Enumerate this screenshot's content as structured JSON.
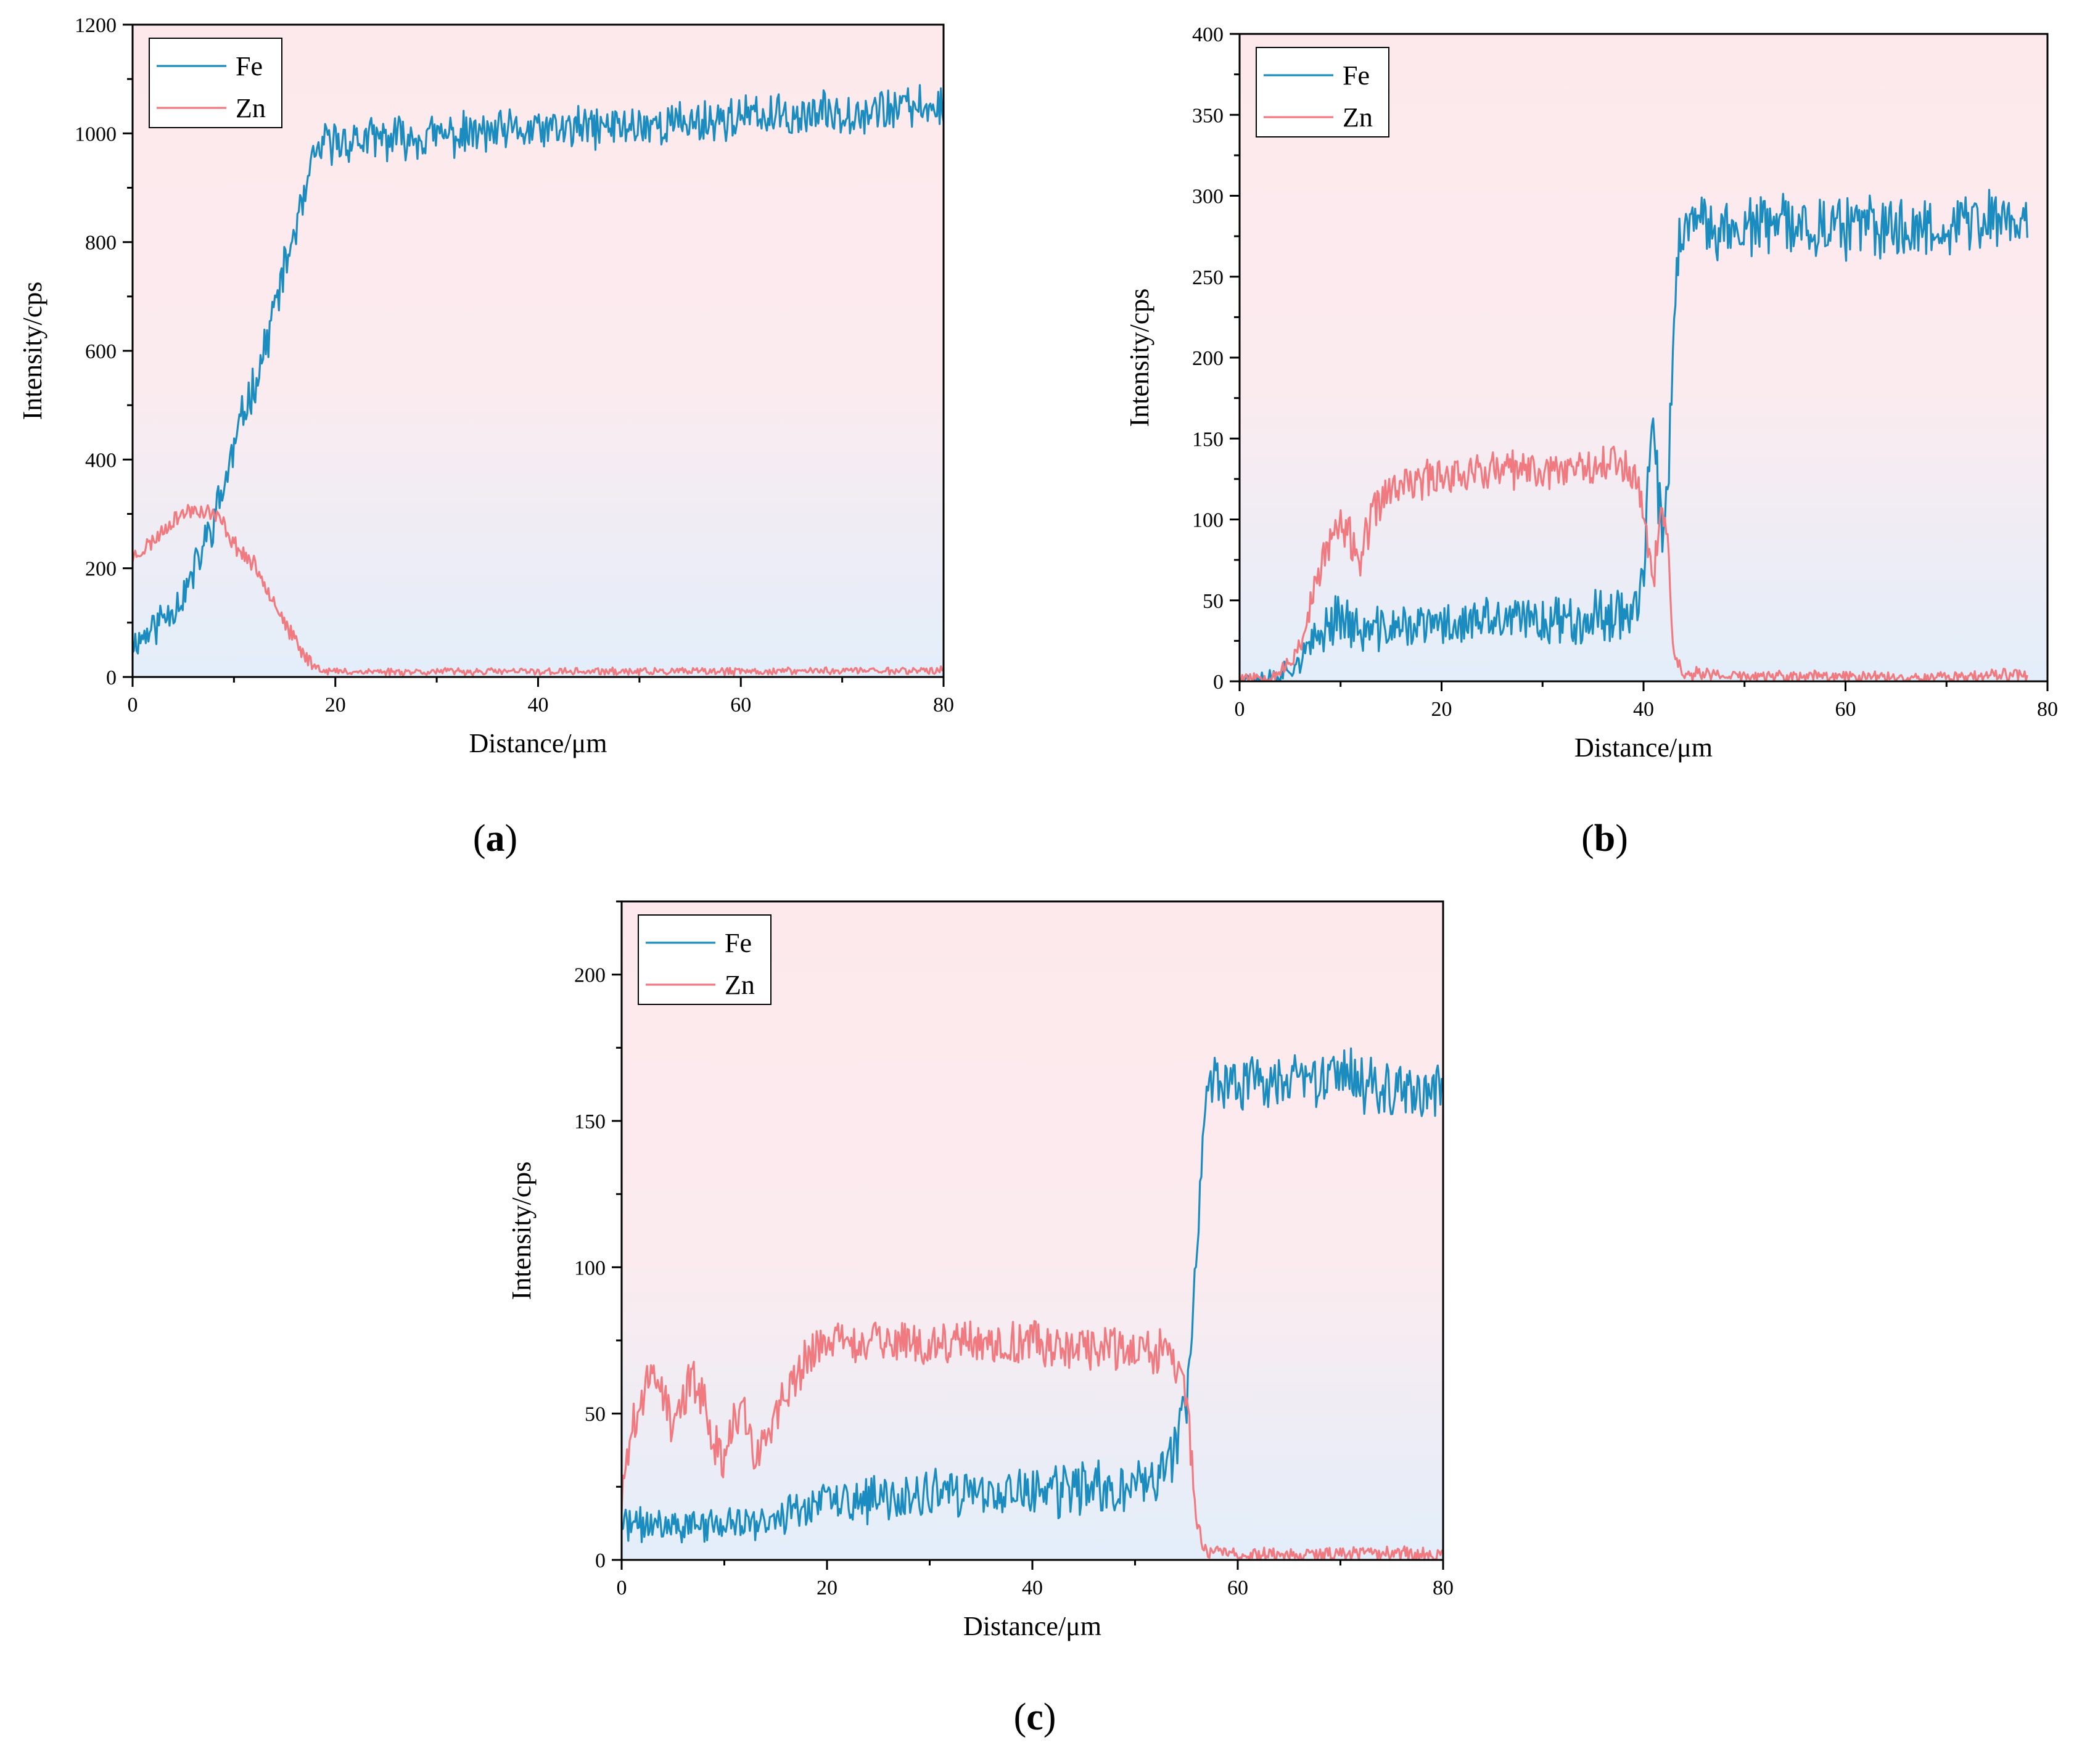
{
  "colors": {
    "fe": "#1a8cc0",
    "zn": "#f07a80",
    "bg_top": "#fde9ec",
    "bg_bottom": "#e3eefa"
  },
  "chart_data": [
    {
      "panel": "(a)",
      "panel_letter": "a",
      "type": "line",
      "xlabel": "Distance/μm",
      "ylabel": "Intensity/cps",
      "xlim": [
        0,
        80
      ],
      "ylim": [
        0,
        1200
      ],
      "xticks": [
        0,
        20,
        40,
        60,
        80
      ],
      "yticks": [
        0,
        200,
        400,
        600,
        800,
        1000,
        1200
      ],
      "legend_position": "top-left",
      "series": [
        {
          "name": "Fe",
          "color": "#1a8cc0",
          "x": [
            0,
            2,
            4,
            5,
            6,
            7,
            8,
            9,
            10,
            11,
            12,
            13,
            14,
            15,
            16,
            17,
            18,
            19,
            20,
            25,
            30,
            35,
            40,
            45,
            50,
            55,
            60,
            65,
            70,
            75,
            80
          ],
          "y": [
            60,
            90,
            130,
            150,
            190,
            240,
            290,
            350,
            420,
            490,
            540,
            600,
            680,
            750,
            820,
            880,
            960,
            980,
            985,
            990,
            995,
            1000,
            1005,
            1010,
            1015,
            1020,
            1030,
            1030,
            1040,
            1045,
            1050
          ],
          "noise": 35,
          "seed": 11
        },
        {
          "name": "Zn",
          "color": "#f07a80",
          "x": [
            0,
            2,
            4,
            6,
            8,
            9,
            10,
            11,
            12,
            13,
            14,
            15,
            16,
            17,
            18,
            19,
            20,
            30,
            40,
            50,
            60,
            70,
            80
          ],
          "y": [
            220,
            250,
            290,
            310,
            300,
            280,
            245,
            225,
            205,
            175,
            140,
            100,
            65,
            38,
            20,
            12,
            10,
            10,
            10,
            10,
            10,
            12,
            12
          ],
          "noise": 14,
          "seed": 23
        }
      ]
    },
    {
      "panel": "(b)",
      "panel_letter": "b",
      "type": "line",
      "xlabel": "Distance/μm",
      "ylabel": "Intensity/cps",
      "xlim": [
        0,
        80
      ],
      "ylim": [
        0,
        400
      ],
      "xticks": [
        0,
        20,
        40,
        60,
        80
      ],
      "yticks": [
        0,
        50,
        100,
        150,
        200,
        250,
        300,
        350,
        400
      ],
      "legend_position": "top-left",
      "series": [
        {
          "name": "Fe",
          "color": "#1a8cc0",
          "x": [
            0,
            3,
            5,
            7,
            9,
            10,
            11,
            12,
            15,
            20,
            25,
            30,
            35,
            39,
            40,
            40.5,
            41,
            41.5,
            42,
            42.5,
            43,
            43.5,
            44,
            50,
            55,
            60,
            65,
            70,
            75,
            78
          ],
          "y": [
            2,
            3,
            8,
            20,
            38,
            42,
            35,
            30,
            33,
            35,
            37,
            38,
            40,
            45,
            60,
            120,
            170,
            110,
            80,
            130,
            230,
            270,
            280,
            280,
            282,
            280,
            280,
            282,
            285,
            285
          ],
          "noise": 17,
          "seed": 37
        },
        {
          "name": "Zn",
          "color": "#f07a80",
          "x": [
            0,
            3,
            5,
            6,
            7,
            8,
            9,
            10,
            11,
            12,
            13,
            14,
            15,
            17,
            20,
            25,
            30,
            35,
            38,
            39,
            40,
            40.5,
            41,
            41.5,
            42,
            42.5,
            43,
            44,
            50,
            60,
            70,
            78
          ],
          "y": [
            3,
            3,
            10,
            25,
            45,
            70,
            88,
            95,
            88,
            75,
            100,
            112,
            118,
            122,
            128,
            130,
            130,
            135,
            135,
            128,
            112,
            75,
            60,
            100,
            100,
            80,
            15,
            5,
            3,
            3,
            3,
            4
          ],
          "noise": 11,
          "seed": 53
        }
      ]
    },
    {
      "panel": "(c)",
      "panel_letter": "c",
      "type": "line",
      "xlabel": "Distance/μm",
      "ylabel": "Intensity/cps",
      "xlim": [
        0,
        80
      ],
      "ylim": [
        0,
        225
      ],
      "xticks": [
        0,
        20,
        40,
        60,
        80
      ],
      "yticks": [
        0,
        50,
        100,
        150,
        200
      ],
      "legend_position": "top-left",
      "series": [
        {
          "name": "Fe",
          "color": "#1a8cc0",
          "x": [
            0,
            5,
            10,
            15,
            16,
            17,
            20,
            25,
            30,
            35,
            40,
            45,
            50,
            53,
            54,
            55,
            55.5,
            56,
            56.5,
            57,
            58,
            60,
            65,
            70,
            75,
            80
          ],
          "y": [
            12,
            12,
            12,
            13,
            16,
            18,
            20,
            20,
            22,
            22,
            23,
            24,
            25,
            32,
            40,
            52,
            80,
            105,
            140,
            160,
            165,
            162,
            162,
            165,
            162,
            160
          ],
          "noise": 9,
          "seed": 71
        },
        {
          "name": "Zn",
          "color": "#f07a80",
          "x": [
            0,
            1,
            2,
            3,
            4,
            5,
            6,
            7,
            8,
            9,
            10,
            11,
            12,
            13,
            14,
            15,
            16,
            17,
            18,
            20,
            25,
            30,
            35,
            40,
            45,
            50,
            53,
            54,
            55,
            55.5,
            56,
            56.5,
            57,
            60,
            70,
            80
          ],
          "y": [
            20,
            45,
            55,
            65,
            58,
            45,
            55,
            62,
            55,
            40,
            35,
            48,
            52,
            35,
            40,
            50,
            55,
            62,
            70,
            75,
            75,
            73,
            74,
            74,
            72,
            72,
            70,
            68,
            55,
            35,
            15,
            5,
            3,
            2,
            2,
            2
          ],
          "noise": 7,
          "seed": 89
        }
      ]
    }
  ]
}
